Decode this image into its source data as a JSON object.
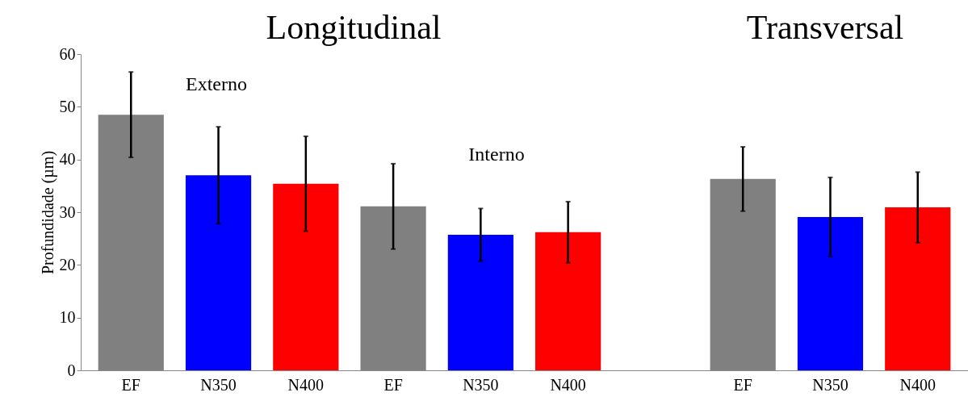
{
  "chart_data": {
    "type": "bar",
    "ylabel": "Profundidade (µm)",
    "categories": [
      "EF",
      "N350",
      "N400",
      "EF",
      "N350",
      "N400",
      null,
      "EF",
      "N350",
      "N400"
    ],
    "values": [
      48.5,
      37.0,
      35.4,
      31.1,
      25.7,
      26.2,
      null,
      36.3,
      29.1,
      30.9
    ],
    "errors": [
      8.1,
      9.2,
      9.0,
      8.1,
      5.0,
      5.8,
      null,
      6.1,
      7.5,
      6.7
    ],
    "colors": [
      "#808080",
      "#0000ff",
      "#ff0000",
      "#808080",
      "#0000ff",
      "#ff0000",
      null,
      "#808080",
      "#0000ff",
      "#ff0000"
    ],
    "ylim": [
      0,
      60
    ],
    "yticks": [
      0,
      10,
      20,
      30,
      40,
      50,
      60
    ],
    "grid": false,
    "annotations": [
      "Longitudinal",
      "Transversal",
      "Externo",
      "Interno"
    ]
  }
}
